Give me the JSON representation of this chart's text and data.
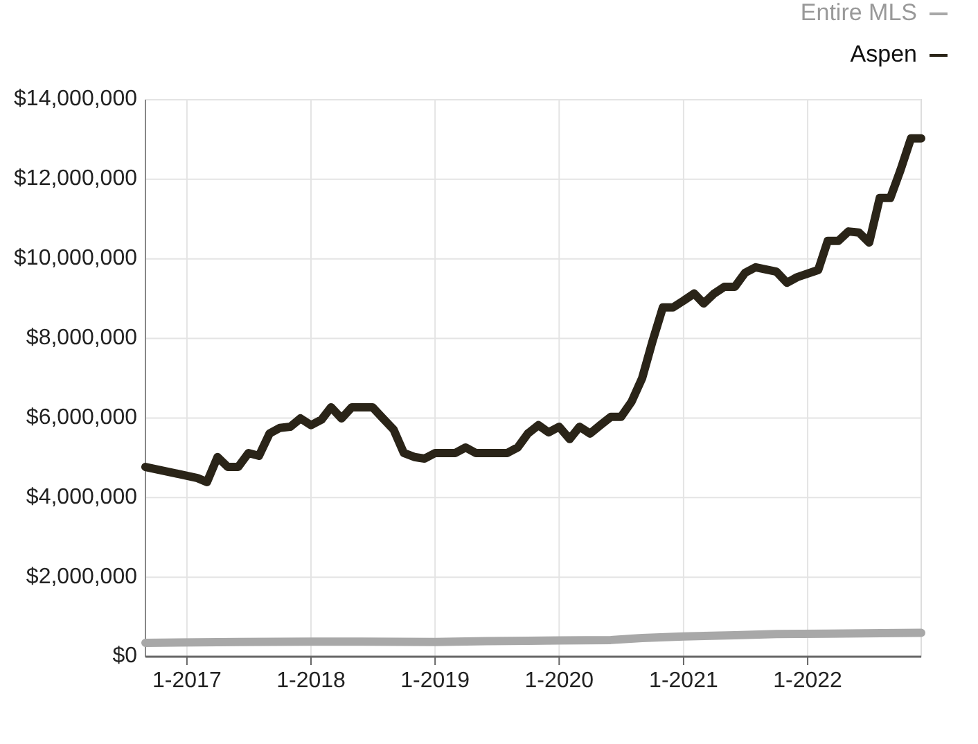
{
  "chart_data": {
    "type": "line",
    "xlim": [
      "2016-09",
      "2022-12"
    ],
    "xticks": [
      {
        "value": "2017-01",
        "label": "1-2017"
      },
      {
        "value": "2018-01",
        "label": "1-2018"
      },
      {
        "value": "2019-01",
        "label": "1-2019"
      },
      {
        "value": "2020-01",
        "label": "1-2020"
      },
      {
        "value": "2021-01",
        "label": "1-2021"
      },
      {
        "value": "2022-01",
        "label": "1-2022"
      }
    ],
    "ylim": [
      0,
      14000000
    ],
    "yticks": [
      {
        "value": 0,
        "label": "$0"
      },
      {
        "value": 2000000,
        "label": "$2,000,000"
      },
      {
        "value": 4000000,
        "label": "$4,000,000"
      },
      {
        "value": 6000000,
        "label": "$6,000,000"
      },
      {
        "value": 8000000,
        "label": "$8,000,000"
      },
      {
        "value": 10000000,
        "label": "$10,000,000"
      },
      {
        "value": 12000000,
        "label": "$12,000,000"
      },
      {
        "value": 14000000,
        "label": "$14,000,000"
      }
    ],
    "grid": true,
    "legend": "top right",
    "marker": "none",
    "line_style": "solid",
    "series": [
      {
        "name": "Entire MLS",
        "color": "#a8a8a8",
        "x": [
          "2016-09",
          "2017-06",
          "2018-01",
          "2018-06",
          "2019-01",
          "2019-06",
          "2020-01",
          "2020-06",
          "2020-09",
          "2021-01",
          "2021-06",
          "2021-10",
          "2022-03",
          "2022-12"
        ],
        "values": [
          350000,
          370000,
          380000,
          380000,
          370000,
          390000,
          410000,
          420000,
          470000,
          510000,
          540000,
          570000,
          580000,
          600000
        ]
      },
      {
        "name": "Aspen",
        "color": "#2a2418",
        "x": [
          "2016-09",
          "2017-02",
          "2017-03",
          "2017-04",
          "2017-05",
          "2017-06",
          "2017-07",
          "2017-08",
          "2017-09",
          "2017-10",
          "2017-11",
          "2017-12",
          "2018-01",
          "2018-02",
          "2018-03",
          "2018-04",
          "2018-05",
          "2018-07",
          "2018-08",
          "2018-09",
          "2018-10",
          "2018-11",
          "2018-12",
          "2019-01",
          "2019-03",
          "2019-04",
          "2019-05",
          "2019-08",
          "2019-09",
          "2019-10",
          "2019-11",
          "2019-12",
          "2020-01",
          "2020-02",
          "2020-03",
          "2020-04",
          "2020-05",
          "2020-06",
          "2020-07",
          "2020-08",
          "2020-09",
          "2020-10",
          "2020-11",
          "2020-12",
          "2021-01",
          "2021-02",
          "2021-03",
          "2021-04",
          "2021-05",
          "2021-06",
          "2021-07",
          "2021-08",
          "2021-10",
          "2021-11",
          "2021-12",
          "2022-02",
          "2022-03",
          "2022-04",
          "2022-05",
          "2022-06",
          "2022-07",
          "2022-08",
          "2022-09",
          "2022-10",
          "2022-11",
          "2022-12"
        ],
        "values": [
          4770000,
          4490000,
          4390000,
          5020000,
          4770000,
          4770000,
          5120000,
          5050000,
          5610000,
          5750000,
          5780000,
          5990000,
          5820000,
          5960000,
          6270000,
          5990000,
          6270000,
          6270000,
          5990000,
          5710000,
          5120000,
          5020000,
          4980000,
          5120000,
          5120000,
          5260000,
          5120000,
          5120000,
          5260000,
          5610000,
          5820000,
          5640000,
          5780000,
          5470000,
          5780000,
          5610000,
          5820000,
          6030000,
          6030000,
          6410000,
          7000000,
          7910000,
          8780000,
          8780000,
          8950000,
          9130000,
          8880000,
          9130000,
          9300000,
          9300000,
          9650000,
          9790000,
          9680000,
          9400000,
          9540000,
          9720000,
          10450000,
          10450000,
          10690000,
          10660000,
          10410000,
          11530000,
          11530000,
          12230000,
          13030000,
          13030000
        ]
      }
    ]
  }
}
